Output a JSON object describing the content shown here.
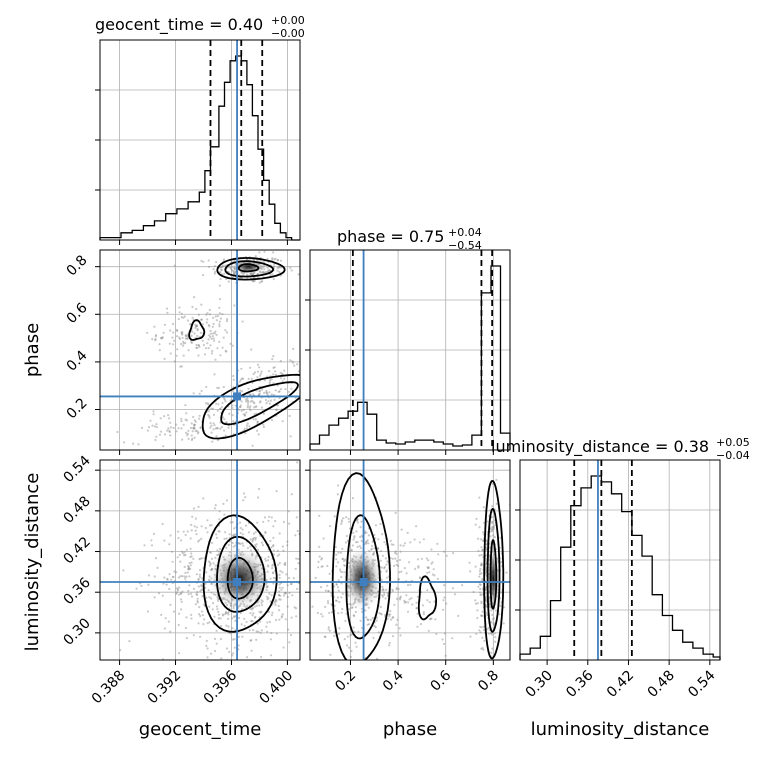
{
  "chart_data": {
    "type": "corner",
    "parameters": [
      "geocent_time",
      "phase",
      "luminosity_distance"
    ],
    "axis_labels": {
      "x": [
        "geocent_time",
        "phase",
        "luminosity_distance"
      ],
      "y": [
        "phase",
        "luminosity_distance"
      ]
    },
    "titles": [
      {
        "param": "geocent_time",
        "text": "geocent_time = 0.40",
        "sup": "+0.00",
        "sub": "−0.00"
      },
      {
        "param": "phase",
        "text": "phase = 0.75",
        "sup": "+0.04",
        "sub": "−0.54"
      },
      {
        "param": "luminosity_distance",
        "text": "luminosity_distance = 0.38",
        "sup": "+0.05",
        "sub": "−0.04"
      }
    ],
    "ranges": {
      "geocent_time": [
        0.3866,
        0.4009
      ],
      "phase": [
        0.03,
        0.87
      ],
      "luminosity_distance": [
        0.26,
        0.555
      ]
    },
    "ticks": {
      "geocent_time": {
        "values": [
          0.388,
          0.392,
          0.396,
          0.4
        ],
        "labels": [
          "0.388",
          "0.392",
          "0.396",
          "0.400"
        ]
      },
      "phase": {
        "values": [
          0.2,
          0.4,
          0.6,
          0.8
        ],
        "labels": [
          "0.2",
          "0.4",
          "0.6",
          "0.8"
        ]
      },
      "luminosity_distance": {
        "values": [
          0.3,
          0.36,
          0.42,
          0.48,
          0.54
        ],
        "labels": [
          "0.30",
          "0.36",
          "0.42",
          "0.48",
          "0.54"
        ]
      }
    },
    "truths": {
      "geocent_time": 0.3964,
      "phase": 0.255,
      "luminosity_distance": 0.375
    },
    "quantiles": {
      "geocent_time": [
        0.3945,
        0.3967,
        0.3982
      ],
      "phase": [
        0.21,
        0.75,
        0.795
      ],
      "luminosity_distance": [
        0.34,
        0.38,
        0.425
      ]
    },
    "histograms": {
      "geocent_time": {
        "bins": [
          0.3866,
          0.3881,
          0.3889,
          0.3897,
          0.3905,
          0.3913,
          0.3921,
          0.3929,
          0.3937,
          0.3941,
          0.3945,
          0.3951,
          0.3955,
          0.3959,
          0.3963,
          0.3967,
          0.3971,
          0.3975,
          0.3979,
          0.3983,
          0.3987,
          0.3991,
          0.3995,
          0.3999,
          0.4003,
          0.4009
        ],
        "counts": [
          1,
          3,
          4,
          6,
          8,
          11,
          13,
          16,
          20,
          29,
          39,
          56,
          66,
          75,
          77,
          75,
          65,
          52,
          38,
          25,
          15,
          7,
          3,
          1,
          0
        ]
      },
      "phase": {
        "bins": [
          0.03,
          0.07,
          0.11,
          0.15,
          0.19,
          0.23,
          0.27,
          0.31,
          0.35,
          0.39,
          0.43,
          0.47,
          0.51,
          0.55,
          0.59,
          0.63,
          0.67,
          0.71,
          0.75,
          0.79,
          0.83,
          0.87
        ],
        "counts": [
          6,
          15,
          25,
          32,
          39,
          48,
          36,
          10,
          7,
          6,
          8,
          10,
          10,
          8,
          6,
          4,
          5,
          15,
          158,
          185,
          17
        ]
      },
      "luminosity_distance": {
        "bins": [
          0.26,
          0.275,
          0.29,
          0.305,
          0.32,
          0.335,
          0.35,
          0.365,
          0.38,
          0.395,
          0.41,
          0.425,
          0.44,
          0.455,
          0.47,
          0.485,
          0.5,
          0.515,
          0.53,
          0.545,
          0.555
        ],
        "counts": [
          2,
          4,
          8,
          20,
          38,
          52,
          58,
          62,
          60,
          56,
          50,
          42,
          35,
          22,
          15,
          10,
          6,
          4,
          2,
          1
        ]
      }
    },
    "grid": true
  }
}
